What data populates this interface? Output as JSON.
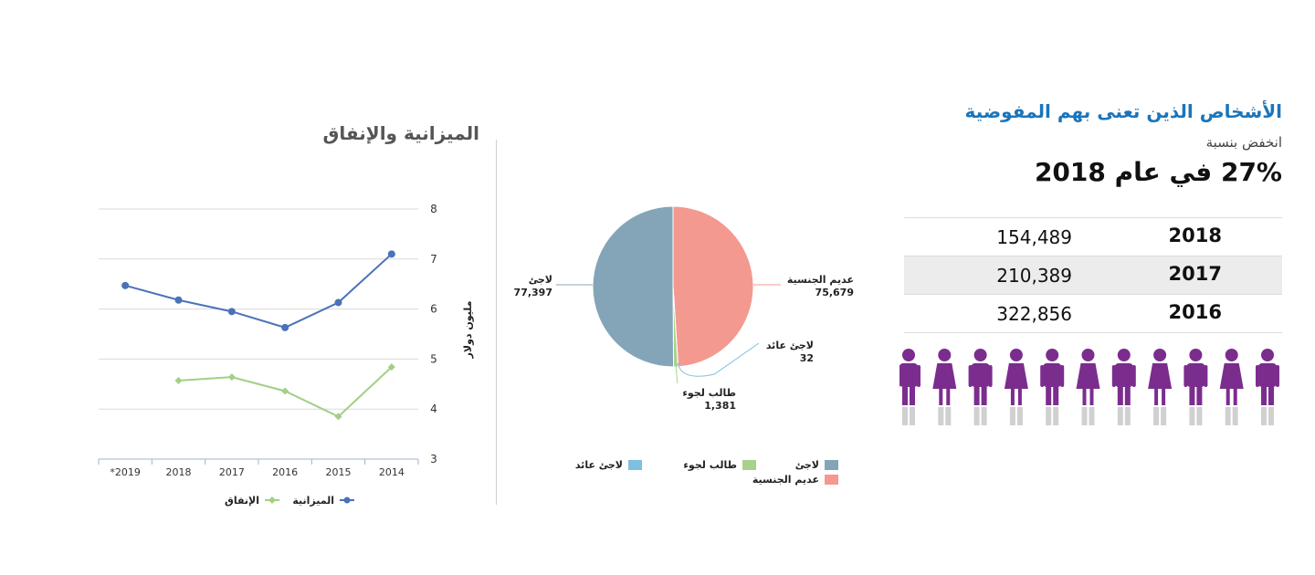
{
  "poc": {
    "title": "الأشخاص الذين تعنى بهم المفوضية",
    "subtitle": "انخفض بنسبة",
    "headline": "27% في عام 2018",
    "rows": [
      {
        "year": "2018",
        "value": "154,489"
      },
      {
        "year": "2017",
        "value": "210,389"
      },
      {
        "year": "2016",
        "value": "322,856"
      }
    ],
    "icon_color": "#7b2d8e",
    "icon_base_color": "#d0d0d0"
  },
  "chart_data": [
    {
      "type": "pie",
      "title": "",
      "slices": [
        {
          "label": "عديم الجنسية",
          "value": 75679,
          "display": "75,679",
          "color": "#f4998f"
        },
        {
          "label": "لاجئ عائد",
          "value": 32,
          "display": "32",
          "color": "#7fbfe0"
        },
        {
          "label": "طالب لجوء",
          "value": 1381,
          "display": "1,381",
          "color": "#a9d18e"
        },
        {
          "label": "لاجئ",
          "value": 77397,
          "display": "77,397",
          "color": "#84a5b8"
        }
      ],
      "legend": [
        {
          "label": "لاجئ",
          "color": "#84a5b8"
        },
        {
          "label": "عديم الجنسية",
          "color": "#f4998f"
        },
        {
          "label": "طالب لجوء",
          "color": "#a9d18e"
        },
        {
          "label": "لاجئ عائد",
          "color": "#7fbfe0"
        }
      ],
      "legend_position": "bottom"
    },
    {
      "type": "line",
      "title": "الميزانية والإنفاق",
      "ylabel": "مليون دولار",
      "xlabel": "",
      "categories": [
        "*2019",
        "2018",
        "2017",
        "2016",
        "2015",
        "2014"
      ],
      "ylim": [
        3,
        8
      ],
      "yticks": [
        3,
        4,
        5,
        6,
        7,
        8
      ],
      "series": [
        {
          "name": "الميزانية",
          "color": "#4a72b8",
          "marker": "circle",
          "values": [
            6.47,
            6.18,
            5.95,
            5.63,
            6.13,
            7.1
          ]
        },
        {
          "name": "الإنفاق",
          "color": "#a2cf86",
          "marker": "diamond",
          "values": [
            null,
            4.57,
            4.64,
            4.36,
            3.85,
            4.84
          ]
        }
      ],
      "grid": true,
      "legend_position": "bottom"
    }
  ]
}
